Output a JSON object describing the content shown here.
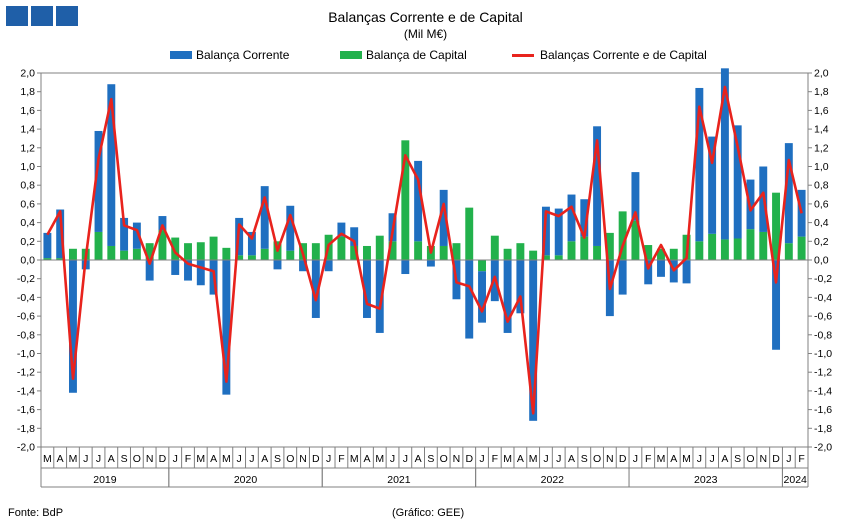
{
  "header": {
    "title": "Balanças Corrente e de Capital",
    "subtitle": "(Mil M€)"
  },
  "footer": {
    "source": "Fonte: BdP",
    "credit": "(Gráfico: GEE)"
  },
  "colors": {
    "corrente": "#1f6fc0",
    "capital": "#22b14c",
    "total": "#e8231d",
    "logo": "#1f5fa8"
  },
  "chart_data": {
    "type": "bar",
    "title": "Balanças Corrente e de Capital",
    "subtitle": "(Mil M€)",
    "stacked": true,
    "ylim": [
      -2.0,
      2.0
    ],
    "yticks": [
      "2,0",
      "1,8",
      "1,6",
      "1,4",
      "1,2",
      "1,0",
      "0,8",
      "0,6",
      "0,4",
      "0,2",
      "0,0",
      "-0,2",
      "-0,4",
      "-0,6",
      "-0,8",
      "-1,0",
      "-1,2",
      "-1,4",
      "-1,6",
      "-1,8",
      "-2,0"
    ],
    "grid": false,
    "legend": "top",
    "categories": [
      "M",
      "A",
      "M",
      "J",
      "J",
      "A",
      "S",
      "O",
      "N",
      "D",
      "J",
      "F",
      "M",
      "A",
      "M",
      "J",
      "J",
      "A",
      "S",
      "O",
      "N",
      "D",
      "J",
      "F",
      "M",
      "A",
      "M",
      "J",
      "J",
      "A",
      "S",
      "O",
      "N",
      "D",
      "J",
      "F",
      "M",
      "A",
      "M",
      "J",
      "J",
      "A",
      "S",
      "O",
      "N",
      "D",
      "J",
      "F",
      "M",
      "A",
      "M",
      "J",
      "J",
      "A",
      "S",
      "O",
      "N",
      "D",
      "J",
      "F"
    ],
    "years": [
      {
        "label": "2019",
        "start": 0,
        "end": 9
      },
      {
        "label": "2020",
        "start": 10,
        "end": 21
      },
      {
        "label": "2021",
        "start": 22,
        "end": 33
      },
      {
        "label": "2022",
        "start": 34,
        "end": 45
      },
      {
        "label": "2023",
        "start": 46,
        "end": 57
      },
      {
        "label": "2024",
        "start": 58,
        "end": 59
      }
    ],
    "series": [
      {
        "name": "Balança Corrente",
        "type": "bar",
        "values": [
          0.27,
          0.52,
          -1.42,
          -0.1,
          1.08,
          1.73,
          0.35,
          0.28,
          -0.22,
          0.15,
          -0.16,
          -0.22,
          -0.27,
          -0.37,
          -1.44,
          0.4,
          0.25,
          0.67,
          -0.1,
          0.48,
          -0.12,
          -0.62,
          -0.12,
          0.15,
          0.2,
          -0.62,
          -0.78,
          0.3,
          -0.15,
          0.86,
          -0.07,
          0.6,
          -0.42,
          -0.84,
          -0.55,
          -0.44,
          -0.78,
          -0.57,
          -1.72,
          0.52,
          0.5,
          0.5,
          0.4,
          1.28,
          -0.6,
          -0.37,
          0.52,
          -0.26,
          -0.18,
          -0.24,
          -0.25,
          1.64,
          1.04,
          1.83,
          1.21,
          0.53,
          0.7,
          -0.96,
          1.07,
          0.5
        ]
      },
      {
        "name": "Balança de Capital",
        "type": "bar",
        "values": [
          0.02,
          0.02,
          0.12,
          0.12,
          0.3,
          0.15,
          0.1,
          0.12,
          0.18,
          0.32,
          0.24,
          0.18,
          0.19,
          0.25,
          0.13,
          0.05,
          0.05,
          0.12,
          0.2,
          0.1,
          0.18,
          0.18,
          0.27,
          0.25,
          0.15,
          0.15,
          0.26,
          0.2,
          1.28,
          0.2,
          0.15,
          0.15,
          0.18,
          0.56,
          -0.12,
          0.26,
          0.12,
          0.18,
          0.1,
          0.05,
          0.05,
          0.2,
          0.25,
          0.15,
          0.29,
          0.52,
          0.42,
          0.16,
          0.12,
          0.12,
          0.27,
          0.2,
          0.28,
          0.22,
          0.23,
          0.33,
          0.3,
          0.72,
          0.18,
          0.25
        ]
      },
      {
        "name": "Balanças Corrente e de Capital",
        "type": "line",
        "values": [
          0.27,
          0.52,
          -1.27,
          0.02,
          1.08,
          1.72,
          0.37,
          0.32,
          -0.04,
          0.37,
          0.08,
          -0.04,
          -0.08,
          -0.12,
          -1.3,
          0.38,
          0.23,
          0.67,
          0.1,
          0.48,
          0.06,
          -0.43,
          0.16,
          0.28,
          0.2,
          -0.47,
          -0.52,
          0.3,
          1.12,
          0.86,
          0.08,
          0.6,
          -0.24,
          -0.28,
          -0.55,
          -0.18,
          -0.66,
          -0.39,
          -1.64,
          0.52,
          0.47,
          0.57,
          0.24,
          1.28,
          -0.31,
          0.15,
          0.51,
          -0.09,
          0.16,
          -0.11,
          0.02,
          1.64,
          1.04,
          1.85,
          1.21,
          0.53,
          0.72,
          -0.24,
          1.07,
          0.5
        ]
      }
    ]
  }
}
